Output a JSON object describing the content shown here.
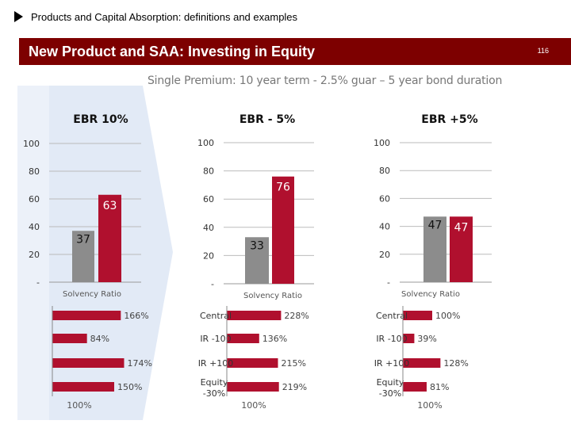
{
  "header": {
    "breadcrumb": "Products and Capital Absorption: definitions and examples",
    "title": "New Product and SAA: Investing in Equity",
    "page_number": "116"
  },
  "subtitle": "Single Premium: 10 year term  - 2.5% guar – 5 year bond duration",
  "colors": {
    "banner": "#7d0000",
    "grey_bar": "#8c8c8c",
    "red_bar": "#b0102e",
    "arrow_fill": "#dde6f4"
  },
  "chart_data": [
    {
      "type": "bar",
      "title": "EBR 10%",
      "yticks": [
        "-",
        "20",
        "40",
        "60",
        "80",
        "100"
      ],
      "ylim": [
        0,
        100
      ],
      "series": [
        {
          "values": [
            37
          ],
          "color": "#8c8c8c"
        },
        {
          "values": [
            63
          ],
          "color": "#b0102e"
        }
      ],
      "data_labels": [
        "37",
        "63"
      ],
      "xlabel": "Solvency Ratio",
      "sensitivity": {
        "type": "bar",
        "categories": [
          "",
          "",
          "",
          ""
        ],
        "values": [
          166,
          84,
          174,
          150
        ],
        "labels": [
          "166%",
          "84%",
          "174%",
          "150%"
        ],
        "footer": "100%"
      }
    },
    {
      "type": "bar",
      "title": "EBR - 5%",
      "yticks": [
        "-",
        "20",
        "40",
        "60",
        "80",
        "100"
      ],
      "ylim": [
        0,
        100
      ],
      "series": [
        {
          "values": [
            33
          ],
          "color": "#8c8c8c"
        },
        {
          "values": [
            76
          ],
          "color": "#b0102e"
        }
      ],
      "data_labels": [
        "33",
        "76"
      ],
      "xlabel": "Solvency Ratio",
      "sensitivity": {
        "type": "bar",
        "categories": [
          "Central",
          "IR -100",
          "IR +100",
          "Equity\n-30%"
        ],
        "values": [
          228,
          136,
          215,
          219
        ],
        "labels": [
          "228%",
          "136%",
          "215%",
          "219%"
        ],
        "footer": "100%"
      }
    },
    {
      "type": "bar",
      "title": "EBR +5%",
      "yticks": [
        "-",
        "20",
        "40",
        "60",
        "80",
        "100"
      ],
      "ylim": [
        0,
        100
      ],
      "series": [
        {
          "values": [
            47
          ],
          "color": "#8c8c8c"
        },
        {
          "values": [
            47
          ],
          "color": "#b0102e"
        }
      ],
      "data_labels": [
        "47",
        "47"
      ],
      "xlabel": "Solvency Ratio",
      "sensitivity": {
        "type": "bar",
        "categories": [
          "Central",
          "IR -100",
          "IR +100",
          "Equity\n-30%"
        ],
        "values": [
          100,
          39,
          128,
          81
        ],
        "labels": [
          "100%",
          "39%",
          "128%",
          "81%"
        ],
        "footer": "100%"
      }
    }
  ]
}
